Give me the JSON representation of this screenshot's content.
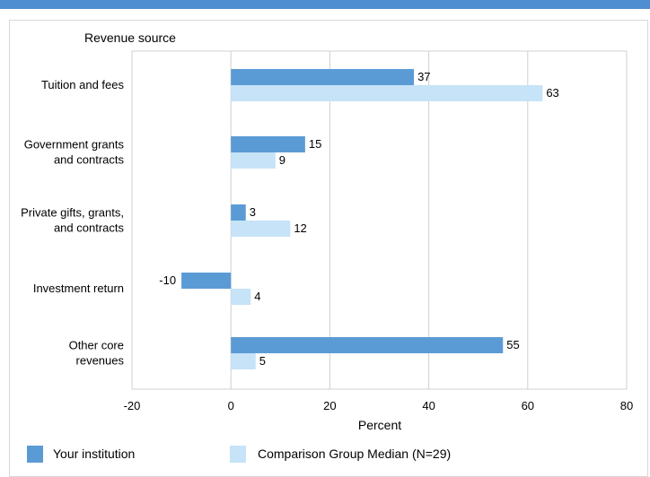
{
  "colors": {
    "top_bar": "#4f8ed0",
    "institution": "#5b9bd5",
    "comparison": "#c6e3f7",
    "grid": "#d0d0d0",
    "frame": "#d8d8d8"
  },
  "chart_data": {
    "type": "bar",
    "orientation": "horizontal",
    "category_axis_title": "Revenue source",
    "xlabel": "Percent",
    "xlim": [
      -20,
      80
    ],
    "xticks": [
      -20,
      0,
      20,
      40,
      60,
      80
    ],
    "grid": true,
    "legend_position": "bottom",
    "categories": [
      [
        "Tuition and fees"
      ],
      [
        "Government grants",
        "and contracts"
      ],
      [
        "Private gifts, grants,",
        "and contracts"
      ],
      [
        "Investment return"
      ],
      [
        "Other core",
        "revenues"
      ]
    ],
    "series": [
      {
        "name": "Your institution",
        "values": [
          37,
          15,
          3,
          -10,
          55
        ]
      },
      {
        "name": "Comparison Group Median (N=29)",
        "values": [
          63,
          9,
          12,
          4,
          5
        ]
      }
    ]
  }
}
